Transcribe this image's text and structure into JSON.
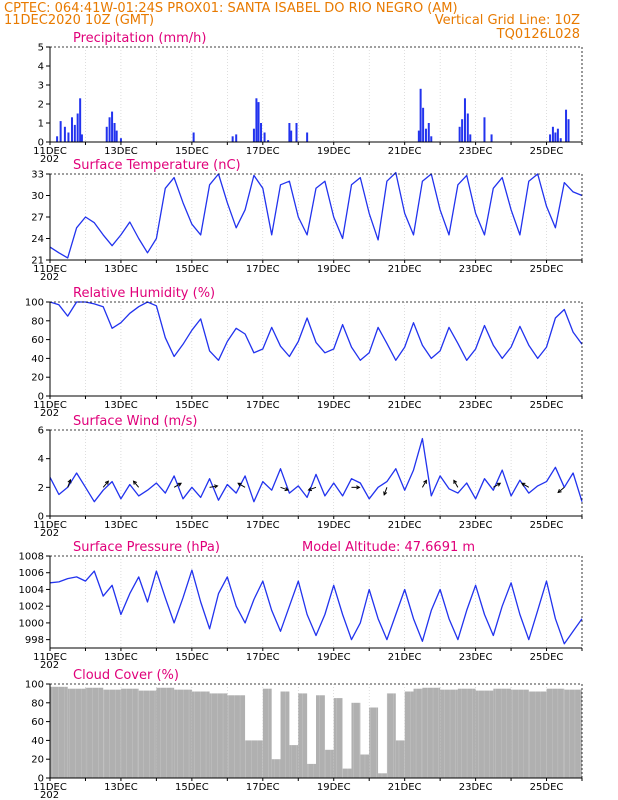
{
  "header": {
    "line1_left": "CPTEC:   064:41W-01:24S   PROX01: SANTA ISABEL DO RIO NEGRO (AM)",
    "line2_left": "11DEC2020 10Z (GMT)",
    "line2_right": "Vertical Grid Line: 10Z",
    "line3_right": "TQ0126L028"
  },
  "colors": {
    "header": "#e87a00",
    "panel_title": "#e0007a",
    "series": "#2233ee",
    "cloud": "#b0b0b0",
    "arrow": "#000000"
  },
  "date_labels": [
    "11DEC",
    "13DEC",
    "15DEC",
    "17DEC",
    "19DEC",
    "21DEC",
    "23DEC",
    "25DEC"
  ],
  "year_fragment": "202",
  "chart_data": [
    {
      "id": "precip",
      "type": "bar",
      "title": "Precipitation (mm/h)",
      "ylim": [
        0,
        5
      ],
      "yticks": [
        0,
        1,
        2,
        3,
        4,
        5
      ],
      "x_unit": "days since 11DEC2020 10Z",
      "x": [
        0.2,
        0.3,
        0.42,
        0.52,
        0.62,
        0.7,
        0.78,
        0.85,
        0.9,
        1.6,
        1.68,
        1.75,
        1.82,
        1.88,
        2.0,
        4.05,
        5.15,
        5.25,
        5.75,
        5.82,
        5.88,
        5.95,
        6.05,
        6.15,
        6.75,
        6.8,
        6.95,
        7.25,
        10.4,
        10.45,
        10.52,
        10.6,
        10.68,
        10.75,
        11.55,
        11.62,
        11.7,
        11.78,
        11.85,
        12.25,
        12.45,
        14.1,
        14.18,
        14.25,
        14.32,
        14.4,
        14.55,
        14.62
      ],
      "values": [
        0.3,
        1.1,
        0.8,
        0.5,
        1.3,
        0.9,
        1.5,
        2.3,
        0.4,
        0.8,
        1.3,
        1.6,
        1.0,
        0.6,
        0.2,
        0.5,
        0.3,
        0.4,
        0.7,
        2.3,
        2.1,
        1.0,
        0.5,
        0.1,
        1.0,
        0.6,
        1.0,
        0.5,
        0.6,
        2.8,
        1.8,
        0.7,
        1.0,
        0.3,
        0.8,
        1.2,
        2.3,
        1.5,
        0.4,
        1.3,
        0.4,
        0.4,
        0.8,
        0.5,
        0.7,
        0.2,
        1.7,
        1.2
      ]
    },
    {
      "id": "temp",
      "type": "line",
      "title": "Surface Temperature (nC)",
      "ylim": [
        21,
        33
      ],
      "yticks": [
        21,
        24,
        27,
        30,
        33
      ],
      "x": [
        0,
        0.25,
        0.5,
        0.75,
        1.0,
        1.25,
        1.5,
        1.75,
        2.0,
        2.25,
        2.5,
        2.75,
        3.0,
        3.25,
        3.5,
        3.75,
        4.0,
        4.25,
        4.5,
        4.75,
        5.0,
        5.25,
        5.5,
        5.75,
        6.0,
        6.25,
        6.5,
        6.75,
        7.0,
        7.25,
        7.5,
        7.75,
        8.0,
        8.25,
        8.5,
        8.75,
        9.0,
        9.25,
        9.5,
        9.75,
        10.0,
        10.25,
        10.5,
        10.75,
        11.0,
        11.25,
        11.5,
        11.75,
        12.0,
        12.25,
        12.5,
        12.75,
        13.0,
        13.25,
        13.5,
        13.75,
        14.0,
        14.25,
        14.5,
        14.75,
        15.0
      ],
      "values": [
        22.8,
        22.0,
        21.3,
        25.5,
        27.0,
        26.2,
        24.5,
        23.0,
        24.5,
        26.3,
        24.0,
        22.0,
        24.0,
        31.0,
        32.5,
        29.0,
        26.0,
        24.5,
        31.5,
        33.0,
        29.0,
        25.5,
        28.0,
        32.8,
        31.0,
        24.5,
        31.5,
        32.0,
        27.0,
        24.5,
        31.0,
        32.0,
        27.0,
        24.0,
        31.5,
        32.5,
        27.5,
        23.8,
        32.0,
        33.2,
        27.5,
        24.5,
        32.0,
        33.0,
        28.0,
        24.5,
        31.5,
        32.8,
        27.5,
        24.5,
        31.0,
        32.5,
        28.0,
        24.5,
        32.0,
        33.0,
        28.5,
        25.5,
        31.8,
        30.5,
        30.0
      ]
    },
    {
      "id": "rh",
      "type": "line",
      "title": "Relative Humidity (%)",
      "ylim": [
        0,
        100
      ],
      "yticks": [
        0,
        20,
        40,
        60,
        80,
        100
      ],
      "x": [
        0,
        0.25,
        0.5,
        0.75,
        1.0,
        1.25,
        1.5,
        1.75,
        2.0,
        2.25,
        2.5,
        2.75,
        3.0,
        3.25,
        3.5,
        3.75,
        4.0,
        4.25,
        4.5,
        4.75,
        5.0,
        5.25,
        5.5,
        5.75,
        6.0,
        6.25,
        6.5,
        6.75,
        7.0,
        7.25,
        7.5,
        7.75,
        8.0,
        8.25,
        8.5,
        8.75,
        9.0,
        9.25,
        9.5,
        9.75,
        10.0,
        10.25,
        10.5,
        10.75,
        11.0,
        11.25,
        11.5,
        11.75,
        12.0,
        12.25,
        12.5,
        12.75,
        13.0,
        13.25,
        13.5,
        13.75,
        14.0,
        14.25,
        14.5,
        14.75,
        15.0
      ],
      "values": [
        100,
        97,
        85,
        100,
        100,
        98,
        95,
        72,
        78,
        88,
        95,
        100,
        96,
        62,
        42,
        55,
        70,
        82,
        48,
        38,
        58,
        72,
        66,
        46,
        50,
        73,
        53,
        42,
        58,
        83,
        57,
        46,
        50,
        76,
        52,
        38,
        46,
        73,
        56,
        38,
        52,
        78,
        54,
        40,
        48,
        73,
        56,
        38,
        50,
        75,
        54,
        40,
        52,
        74,
        54,
        40,
        52,
        83,
        92,
        68,
        55
      ]
    },
    {
      "id": "wind",
      "type": "line",
      "title": "Surface Wind (m/s)",
      "ylim": [
        0,
        6
      ],
      "yticks": [
        0,
        2,
        4,
        6
      ],
      "x": [
        0,
        0.25,
        0.5,
        0.75,
        1.0,
        1.25,
        1.5,
        1.75,
        2.0,
        2.25,
        2.5,
        2.75,
        3.0,
        3.25,
        3.5,
        3.75,
        4.0,
        4.25,
        4.5,
        4.75,
        5.0,
        5.25,
        5.5,
        5.75,
        6.0,
        6.25,
        6.5,
        6.75,
        7.0,
        7.25,
        7.5,
        7.75,
        8.0,
        8.25,
        8.5,
        8.75,
        9.0,
        9.25,
        9.5,
        9.75,
        10.0,
        10.25,
        10.5,
        10.75,
        11.0,
        11.25,
        11.5,
        11.75,
        12.0,
        12.25,
        12.5,
        12.75,
        13.0,
        13.25,
        13.5,
        13.75,
        14.0,
        14.25,
        14.5,
        14.75,
        15.0
      ],
      "values": [
        2.7,
        1.5,
        2.0,
        3.0,
        2.0,
        1.0,
        1.8,
        2.4,
        1.2,
        2.2,
        1.4,
        1.8,
        2.3,
        1.6,
        2.8,
        1.2,
        2.0,
        1.3,
        2.6,
        1.1,
        2.2,
        1.6,
        2.8,
        1.0,
        2.4,
        1.8,
        3.3,
        1.6,
        2.1,
        1.3,
        2.9,
        1.4,
        2.3,
        1.4,
        2.6,
        2.3,
        1.2,
        2.0,
        2.4,
        3.3,
        1.8,
        3.2,
        5.4,
        1.4,
        2.8,
        1.9,
        1.6,
        2.3,
        1.2,
        2.6,
        1.8,
        3.2,
        1.4,
        2.5,
        1.6,
        2.1,
        2.4,
        3.4,
        2.0,
        3.0,
        1.0
      ],
      "arrow_days": [
        0.5,
        1.5,
        2.5,
        3.5,
        4.5,
        5.5,
        6.5,
        7.5,
        8.5,
        9.5,
        10.5,
        11.5,
        12.5,
        13.5,
        14.5
      ],
      "arrow_dirs_deg": [
        20,
        40,
        320,
        60,
        80,
        300,
        110,
        250,
        90,
        200,
        30,
        330,
        60,
        300,
        230
      ]
    },
    {
      "id": "press",
      "type": "line",
      "title": "Surface Pressure (hPa)",
      "note": "Model Altitude: 47.6691 m",
      "ylim": [
        997,
        1008
      ],
      "yticks": [
        998,
        1000,
        1002,
        1004,
        1006,
        1008
      ],
      "x": [
        0,
        0.25,
        0.5,
        0.75,
        1.0,
        1.25,
        1.5,
        1.75,
        2.0,
        2.25,
        2.5,
        2.75,
        3.0,
        3.25,
        3.5,
        3.75,
        4.0,
        4.25,
        4.5,
        4.75,
        5.0,
        5.25,
        5.5,
        5.75,
        6.0,
        6.25,
        6.5,
        6.75,
        7.0,
        7.25,
        7.5,
        7.75,
        8.0,
        8.25,
        8.5,
        8.75,
        9.0,
        9.25,
        9.5,
        9.75,
        10.0,
        10.25,
        10.5,
        10.75,
        11.0,
        11.25,
        11.5,
        11.75,
        12.0,
        12.25,
        12.5,
        12.75,
        13.0,
        13.25,
        13.5,
        13.75,
        14.0,
        14.25,
        14.5,
        14.75,
        15.0
      ],
      "values": [
        1004.8,
        1004.9,
        1005.3,
        1005.5,
        1005.0,
        1006.2,
        1003.2,
        1004.5,
        1001.0,
        1003.5,
        1005.5,
        1002.5,
        1006.2,
        1003.0,
        1000.0,
        1003.0,
        1006.3,
        1002.5,
        999.3,
        1003.5,
        1005.5,
        1002.0,
        1000.0,
        1002.8,
        1005.0,
        1001.5,
        999.0,
        1002.0,
        1005.0,
        1001.0,
        998.5,
        1001.0,
        1004.5,
        1001.0,
        998.0,
        1000.0,
        1004.0,
        1000.5,
        998.0,
        1001.0,
        1004.0,
        1000.5,
        997.8,
        1001.5,
        1004.0,
        1000.5,
        998.0,
        1001.5,
        1004.5,
        1001.0,
        998.5,
        1002.0,
        1004.8,
        1001.0,
        998.0,
        1001.5,
        1005.0,
        1000.5,
        997.5,
        999.0,
        1000.5
      ]
    },
    {
      "id": "cloud",
      "type": "area",
      "title": "Cloud Cover (%)",
      "ylim": [
        0,
        100
      ],
      "yticks": [
        0,
        20,
        40,
        60,
        80,
        100
      ],
      "x": [
        0,
        0.5,
        1.0,
        1.5,
        2.0,
        2.5,
        3.0,
        3.5,
        4.0,
        4.5,
        5.0,
        5.5,
        6.0,
        6.25,
        6.5,
        6.75,
        7.0,
        7.25,
        7.5,
        7.75,
        8.0,
        8.25,
        8.5,
        8.75,
        9.0,
        9.25,
        9.5,
        9.75,
        10.0,
        10.25,
        10.5,
        11.0,
        11.5,
        12.0,
        12.5,
        13.0,
        13.5,
        14.0,
        14.5,
        15.0
      ],
      "values": [
        97,
        95,
        96,
        94,
        95,
        93,
        96,
        94,
        92,
        90,
        88,
        40,
        95,
        20,
        92,
        35,
        90,
        15,
        88,
        30,
        85,
        10,
        80,
        25,
        75,
        5,
        90,
        40,
        92,
        95,
        96,
        94,
        95,
        93,
        95,
        94,
        92,
        95,
        94,
        90
      ]
    }
  ]
}
